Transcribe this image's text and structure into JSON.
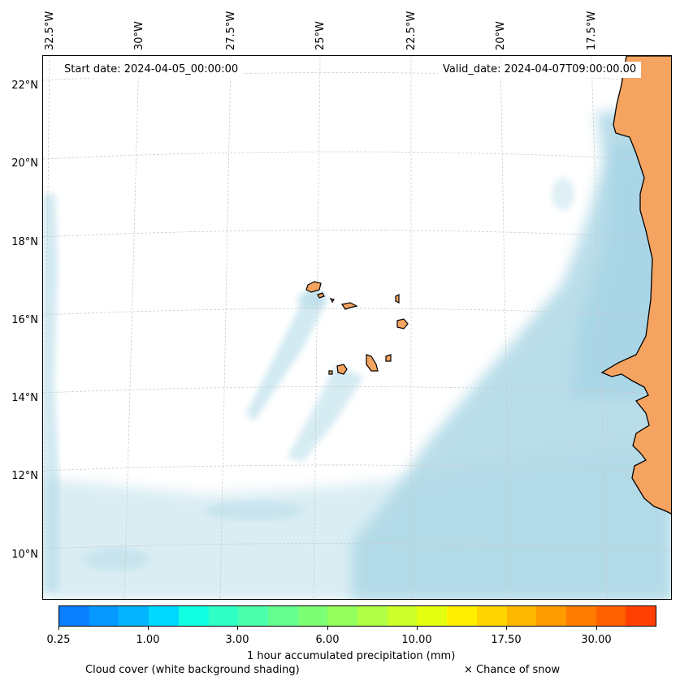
{
  "map": {
    "lon_labels": [
      "32.5°W",
      "30°W",
      "27.5°W",
      "25°W",
      "22.5°W",
      "20°W",
      "17.5°W"
    ],
    "lat_labels": [
      "22°N",
      "20°N",
      "18°N",
      "16°N",
      "14°N",
      "12°N",
      "10°N"
    ],
    "start_date": "Start date: 2024-04-05_00:00:00",
    "valid_date": "Valid_date: 2024-04-07T09:00:00.00",
    "colors": {
      "land": "#f4a460",
      "cloud": "#add8e6",
      "coast": "#000000",
      "grid": "#c8c8c8"
    }
  },
  "colorbar": {
    "label": "1 hour accumulated precipitation (mm)",
    "tick_labels": [
      "0.25",
      "1.00",
      "3.00",
      "6.00",
      "10.00",
      "17.50",
      "30.00"
    ],
    "colors": [
      "#0a80ff",
      "#0799ff",
      "#04b4ff",
      "#00d8ff",
      "#10ffe0",
      "#30ffc4",
      "#4cffac",
      "#64ff90",
      "#7cff74",
      "#94ff5c",
      "#b0ff44",
      "#ccff2c",
      "#e4ff10",
      "#fff000",
      "#ffd400",
      "#ffb800",
      "#ff9c00",
      "#ff7c00",
      "#ff6000",
      "#ff4000"
    ]
  },
  "legend": {
    "cloud_cover": "Cloud cover (white background shading)",
    "snow": "× Chance of snow"
  }
}
